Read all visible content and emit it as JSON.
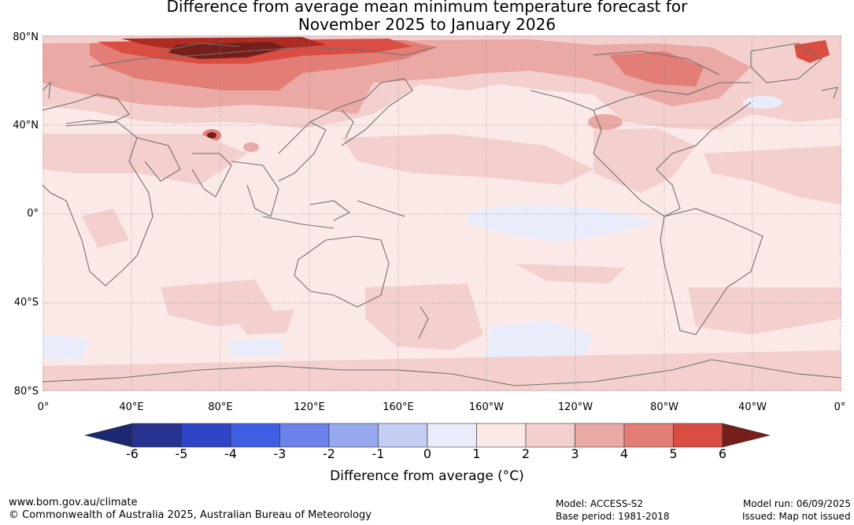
{
  "title": {
    "line1": "Difference from average mean minimum temperature forecast for",
    "line2": "November 2025 to January 2026"
  },
  "map": {
    "lat_labels": [
      "80°N",
      "40°N",
      "0°",
      "40°S",
      "80°S"
    ],
    "lon_labels": [
      "0°",
      "40°E",
      "80°E",
      "120°E",
      "160°E",
      "160°W",
      "120°W",
      "80°W",
      "40°W",
      "0°"
    ]
  },
  "colorbar": {
    "ticks": [
      "-6",
      "-5",
      "-4",
      "-3",
      "-2",
      "-1",
      "0",
      "1",
      "2",
      "3",
      "4",
      "5",
      "6"
    ],
    "colors": [
      "#27338e",
      "#2f45c8",
      "#3f5ee3",
      "#6a82ea",
      "#97a8ee",
      "#c4cdf4",
      "#e9edfb",
      "#fbe9e8",
      "#f3d0ce",
      "#eaa9a4",
      "#e27e76",
      "#d94d43",
      "#ac2c24"
    ],
    "end_low_color": "#1c2870",
    "end_high_color": "#761f1a",
    "label": "Difference from average (°C)"
  },
  "footer": {
    "website": "www.bom.gov.au/climate",
    "copyright": "© Commonwealth of Australia 2025, Australian Bureau of Meteorology",
    "model": "Model: ACCESS-S2",
    "base_period": "Base period: 1981-2018",
    "model_run": "Model run: 06/09/2025",
    "issued": "Issued: Map not issued"
  }
}
